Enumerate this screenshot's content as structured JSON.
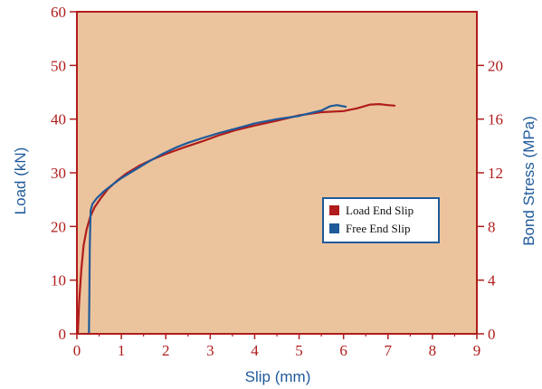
{
  "chart_data": {
    "type": "line",
    "title": "",
    "xlabel": "Slip (mm)",
    "ylabel": "Load (kN)",
    "y2label": "Bond Stress (MPa)",
    "xlim": [
      0,
      9
    ],
    "ylim": [
      0,
      60
    ],
    "y2lim": [
      0,
      24
    ],
    "x_ticks": [
      "0",
      "1",
      "2",
      "3",
      "4",
      "5",
      "6",
      "7",
      "8",
      "9"
    ],
    "y_ticks": [
      "0",
      "10",
      "20",
      "30",
      "40",
      "50",
      "60"
    ],
    "y2_ticks": [
      "0",
      "4",
      "8",
      "12",
      "16",
      "20"
    ],
    "grid": false,
    "legend_position": "center-right",
    "colors": {
      "plot_background": "#ebc49d",
      "axis": "#b01c1c",
      "axis_title": "#1f5a9a",
      "legend_background": "#ffffff",
      "legend_border": "#1f5a9a"
    },
    "series": [
      {
        "name": "Load End Slip",
        "color": "#b01c1c",
        "points": [
          [
            0.02,
            0
          ],
          [
            0.05,
            6
          ],
          [
            0.1,
            12
          ],
          [
            0.15,
            16.5
          ],
          [
            0.22,
            19.5
          ],
          [
            0.3,
            21.8
          ],
          [
            0.4,
            23.6
          ],
          [
            0.55,
            25.4
          ],
          [
            0.7,
            27
          ],
          [
            0.9,
            28.5
          ],
          [
            1.1,
            29.8
          ],
          [
            1.4,
            31.3
          ],
          [
            1.7,
            32.5
          ],
          [
            2.0,
            33.5
          ],
          [
            2.4,
            34.7
          ],
          [
            2.8,
            35.8
          ],
          [
            3.2,
            37
          ],
          [
            3.6,
            38
          ],
          [
            4.0,
            38.8
          ],
          [
            4.5,
            39.7
          ],
          [
            5.0,
            40.7
          ],
          [
            5.5,
            41.3
          ],
          [
            6.0,
            41.5
          ],
          [
            6.3,
            42
          ],
          [
            6.6,
            42.7
          ],
          [
            6.8,
            42.8
          ],
          [
            7.0,
            42.6
          ],
          [
            7.15,
            42.5
          ]
        ]
      },
      {
        "name": "Free End Slip",
        "color": "#1f5a9a",
        "points": [
          [
            0.27,
            0
          ],
          [
            0.28,
            8
          ],
          [
            0.29,
            16
          ],
          [
            0.3,
            20
          ],
          [
            0.31,
            23
          ],
          [
            0.35,
            24.2
          ],
          [
            0.45,
            25.3
          ],
          [
            0.6,
            26.5
          ],
          [
            0.8,
            27.8
          ],
          [
            1.0,
            29
          ],
          [
            1.3,
            30.5
          ],
          [
            1.6,
            32
          ],
          [
            1.9,
            33.4
          ],
          [
            2.2,
            34.6
          ],
          [
            2.5,
            35.6
          ],
          [
            2.8,
            36.4
          ],
          [
            3.2,
            37.4
          ],
          [
            3.6,
            38.3
          ],
          [
            4.0,
            39.2
          ],
          [
            4.5,
            40
          ],
          [
            5.0,
            40.6
          ],
          [
            5.3,
            41.2
          ],
          [
            5.5,
            41.6
          ],
          [
            5.7,
            42.4
          ],
          [
            5.85,
            42.6
          ],
          [
            6.05,
            42.3
          ]
        ]
      }
    ]
  }
}
